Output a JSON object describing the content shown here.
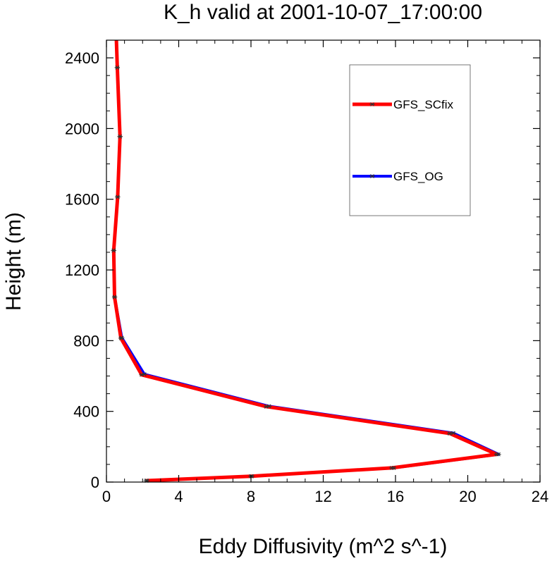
{
  "chart_data": {
    "type": "line",
    "title": "K_h valid at 2001-10-07_17:00:00",
    "xlabel": "Eddy Diffusivity (m^2 s^-1)",
    "ylabel": "Height (m)",
    "xlim": [
      0,
      24
    ],
    "ylim": [
      0,
      2500
    ],
    "x_ticks": [
      0,
      4,
      8,
      12,
      16,
      20,
      24
    ],
    "y_ticks": [
      0,
      400,
      800,
      1200,
      1600,
      2000,
      2400
    ],
    "x_tick_labels": [
      "0",
      "4",
      "8",
      "12",
      "16",
      "20",
      "24"
    ],
    "y_tick_labels": [
      "0",
      "400",
      "800",
      "1200",
      "1600",
      "2000",
      "2400"
    ],
    "grid": false,
    "legend_position": "top-right",
    "series": [
      {
        "name": "GFS_OG",
        "color": "#0000ff",
        "marker": "asterisk",
        "points": [
          [
            2.25,
            8
          ],
          [
            8.05,
            33
          ],
          [
            15.9,
            80
          ],
          [
            21.7,
            157
          ],
          [
            19.2,
            277
          ],
          [
            9.0,
            429
          ],
          [
            2.1,
            610
          ],
          [
            0.85,
            816
          ],
          [
            0.45,
            1047
          ],
          [
            0.4,
            1310
          ],
          [
            0.62,
            1613
          ],
          [
            0.75,
            1955
          ],
          [
            0.6,
            2345
          ],
          [
            0.55,
            2500
          ]
        ]
      },
      {
        "name": "GFS_SCfix",
        "color": "#ff0000",
        "marker": "asterisk",
        "points": [
          [
            2.2,
            8
          ],
          [
            8.0,
            33
          ],
          [
            15.8,
            80
          ],
          [
            21.6,
            157
          ],
          [
            19.0,
            275
          ],
          [
            8.85,
            427
          ],
          [
            1.95,
            607
          ],
          [
            0.8,
            814
          ],
          [
            0.45,
            1047
          ],
          [
            0.4,
            1310
          ],
          [
            0.62,
            1613
          ],
          [
            0.75,
            1955
          ],
          [
            0.6,
            2345
          ],
          [
            0.55,
            2500
          ]
        ]
      }
    ]
  }
}
